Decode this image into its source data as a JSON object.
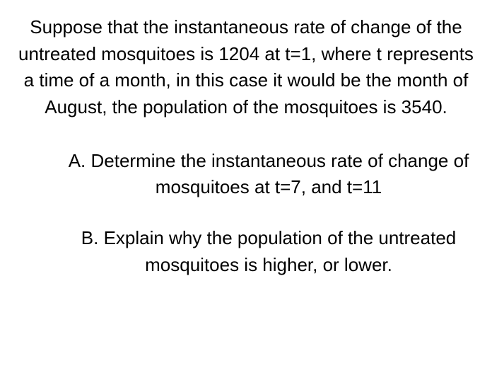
{
  "intro": "Suppose that the instantaneous rate of change of the untreated mosquitoes is 1204 at t=1, where t represents a time of a month, in this case it would be the month of August, the population of the mosquitoes is 3540.",
  "questions": {
    "a": {
      "label": "A.",
      "text": "Determine the instantaneous rate of change of mosquitoes at t=7, and t=11"
    },
    "b": {
      "label": "B.",
      "text": "Explain why the population of the untreated mosquitoes is higher, or lower."
    }
  },
  "style": {
    "font_size_pt": 20,
    "text_color": "#000000",
    "background_color": "#ffffff"
  }
}
